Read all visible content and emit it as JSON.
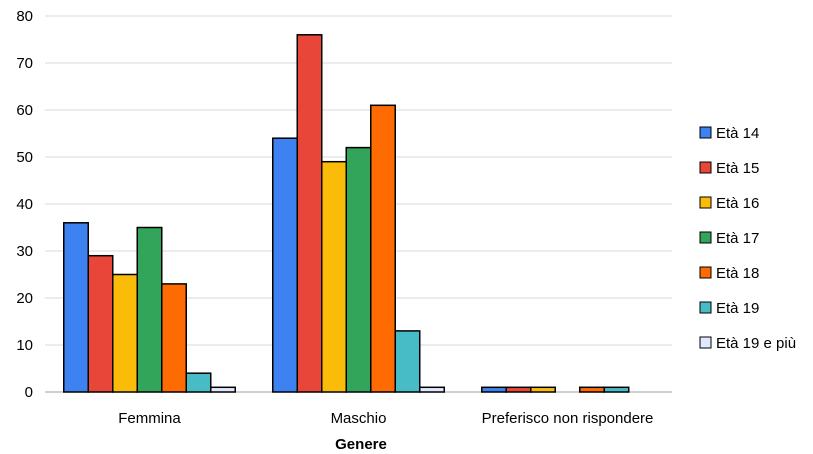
{
  "chart_data": {
    "type": "bar",
    "title": "",
    "xlabel": "Genere",
    "ylabel": "",
    "ylim": [
      0,
      80
    ],
    "yticks": [
      0,
      10,
      20,
      30,
      40,
      50,
      60,
      70,
      80
    ],
    "grid": true,
    "legend_position": "right",
    "categories": [
      "Femmina",
      "Maschio",
      "Preferisco non rispondere"
    ],
    "series": [
      {
        "name": "Età 14",
        "color": "#3d82f0",
        "values": [
          36,
          54,
          1
        ]
      },
      {
        "name": "Età 15",
        "color": "#e9463a",
        "values": [
          29,
          76,
          1
        ]
      },
      {
        "name": "Età 16",
        "color": "#fbbc09",
        "values": [
          25,
          49,
          1
        ]
      },
      {
        "name": "Età 17",
        "color": "#33a55a",
        "values": [
          35,
          52,
          0
        ]
      },
      {
        "name": "Età 18",
        "color": "#fd6b02",
        "values": [
          23,
          61,
          1
        ]
      },
      {
        "name": "Età 19",
        "color": "#48bcc6",
        "values": [
          4,
          13,
          1
        ]
      },
      {
        "name": "Età 19 e più",
        "color": "#dfe9fb",
        "values": [
          1,
          1,
          0
        ]
      }
    ]
  }
}
